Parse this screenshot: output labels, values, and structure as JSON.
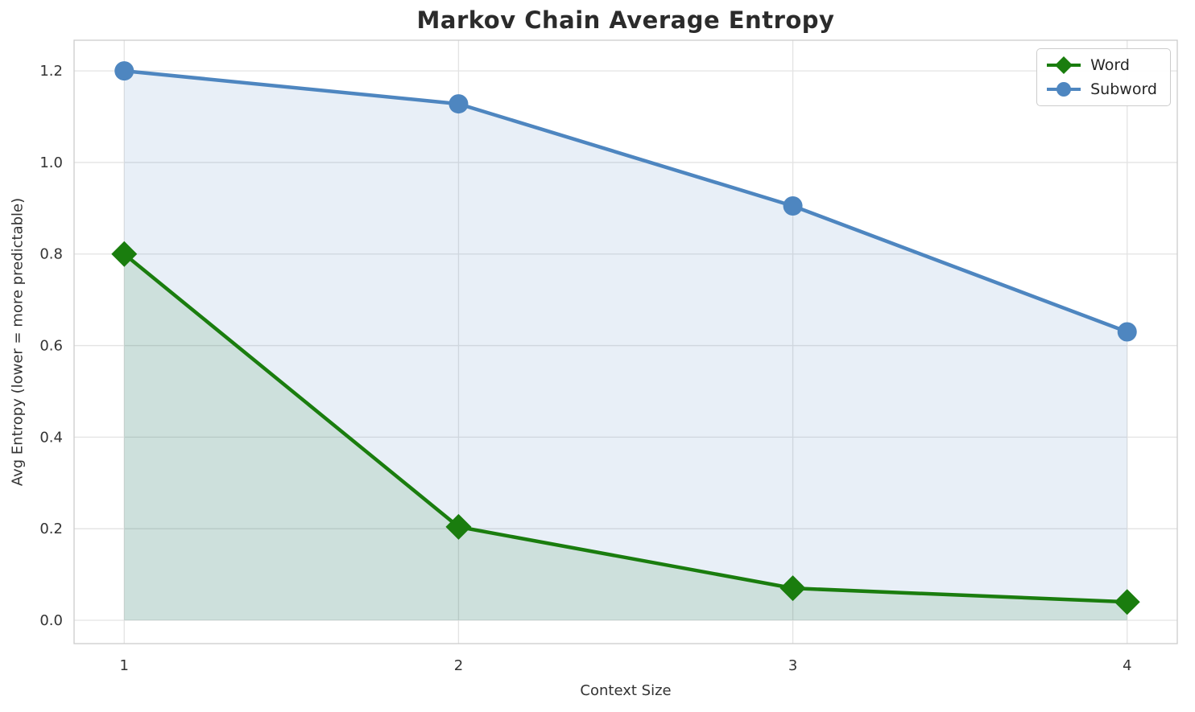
{
  "chart_data": {
    "type": "line",
    "title": "Markov Chain Average Entropy",
    "xlabel": "Context Size",
    "ylabel": "Avg Entropy (lower = more predictable)",
    "x": [
      1,
      2,
      3,
      4
    ],
    "xticks": [
      1,
      2,
      3,
      4
    ],
    "yticks": [
      0.0,
      0.2,
      0.4,
      0.6,
      0.8,
      1.0,
      1.2
    ],
    "xlim": [
      0.85,
      4.15
    ],
    "ylim": [
      -0.051,
      1.267
    ],
    "grid": true,
    "legend_position": "upper right",
    "fill_baseline": 0.0,
    "series": [
      {
        "name": "Word",
        "values": [
          0.8,
          0.204,
          0.07,
          0.04
        ],
        "color": "#1a7d0e",
        "marker": "diamond",
        "fill": true,
        "fill_opacity": 0.13
      },
      {
        "name": "Subword",
        "values": [
          1.2,
          1.128,
          0.905,
          0.63
        ],
        "color": "#4e86c0",
        "marker": "circle",
        "fill": true,
        "fill_opacity": 0.13
      }
    ],
    "colors": {
      "grid": "#e3e3e3",
      "plot_border": "#cccccc",
      "tick_text": "#333333",
      "title_text": "#2b2b2b"
    }
  }
}
